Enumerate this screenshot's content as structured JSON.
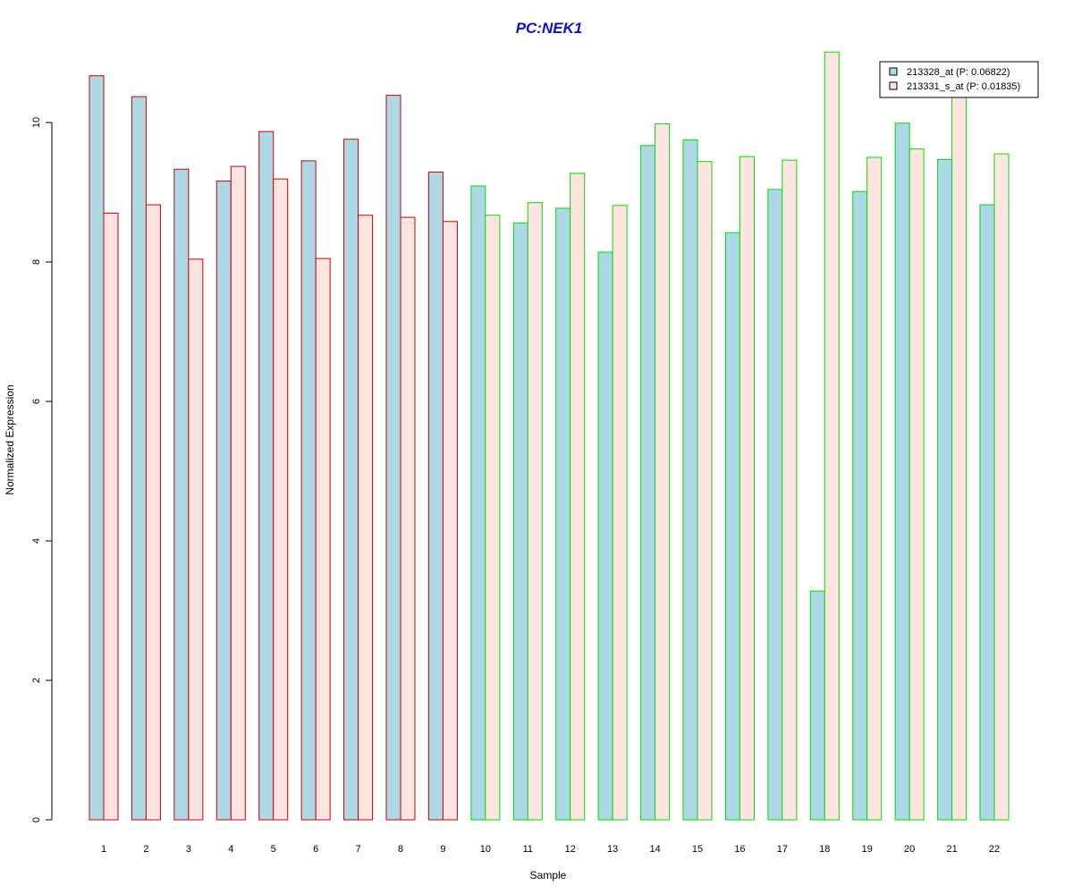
{
  "chart_data": {
    "type": "bar",
    "title": "PC:NEK1",
    "xlabel": "Sample",
    "ylabel": "Normalized Expression",
    "ylim": [
      0,
      11
    ],
    "yticks": [
      0,
      2,
      4,
      6,
      8,
      10
    ],
    "grid": false,
    "legend_position": "top-right",
    "categories": [
      "1",
      "2",
      "3",
      "4",
      "5",
      "6",
      "7",
      "8",
      "9",
      "10",
      "11",
      "12",
      "13",
      "14",
      "15",
      "16",
      "17",
      "18",
      "19",
      "20",
      "21",
      "22"
    ],
    "series": [
      {
        "name": "213328_at (P: 0.06822)",
        "fill": "#add8e6",
        "values": [
          10.67,
          10.37,
          9.33,
          9.16,
          9.87,
          9.45,
          9.76,
          10.39,
          9.29,
          9.09,
          8.56,
          8.77,
          8.14,
          9.67,
          9.75,
          8.42,
          9.04,
          3.28,
          9.01,
          9.99,
          9.47,
          8.82
        ]
      },
      {
        "name": "213331_s_at (P: 0.01835)",
        "fill": "#ffe4e1",
        "values": [
          8.7,
          8.82,
          8.04,
          9.37,
          9.19,
          8.05,
          8.67,
          8.64,
          8.58,
          8.67,
          8.85,
          9.27,
          8.81,
          9.98,
          9.44,
          9.51,
          9.46,
          11.01,
          9.5,
          9.62,
          10.4,
          9.55
        ]
      }
    ],
    "group_border_colors": [
      "#cc0000",
      "#cc0000",
      "#cc0000",
      "#cc0000",
      "#cc0000",
      "#cc0000",
      "#cc0000",
      "#cc0000",
      "#cc0000",
      "#00dd00",
      "#00dd00",
      "#00dd00",
      "#00dd00",
      "#00dd00",
      "#00dd00",
      "#00dd00",
      "#00dd00",
      "#00dd00",
      "#00dd00",
      "#00dd00",
      "#00dd00",
      "#00dd00"
    ],
    "colors": {
      "title": "#1010cc",
      "axis": "#000000"
    }
  }
}
